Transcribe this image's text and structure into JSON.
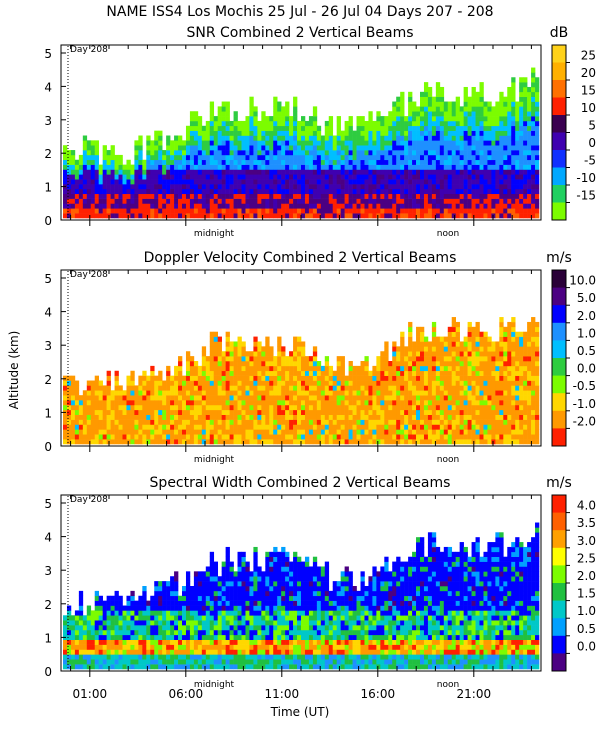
{
  "figure_title": "NAME ISS4 Los Mochis  25 Jul - 26 Jul 04 Days 207 - 208",
  "x_axis": {
    "label": "Time (UT)",
    "tick_labels": [
      "01:00",
      "06:00",
      "11:00",
      "16:00",
      "21:00"
    ],
    "tick_hours": [
      1,
      6,
      11,
      16,
      21
    ],
    "range_hours": [
      -0.5,
      24.5
    ],
    "minor_labels": [
      "midnight",
      "noon"
    ],
    "minor_label_hours": [
      5.2,
      17.2
    ]
  },
  "y_axis_label": "Altitude (km)",
  "day_marker": {
    "label": "Day 208",
    "hour": 0
  },
  "colors": {
    "white": "#ffffff",
    "lime": "#7cfc00",
    "green": "#2ecc40",
    "cyan": "#00bfff",
    "azure": "#1e90ff",
    "blue": "#0000ff",
    "indigo": "#3f00b0",
    "purple": "#4b0082",
    "dark": "#2a0038",
    "red": "#ff2000",
    "orange": "#ff9900",
    "yellow": "#ffd700"
  },
  "chart_data": [
    {
      "type": "heatmap",
      "title": "SNR Combined 2 Vertical Beams",
      "xlabel": "",
      "ylabel": "",
      "ylim": [
        0,
        5
      ],
      "y_ticks": [
        "0",
        "1",
        "2",
        "3",
        "4",
        "5"
      ],
      "colorbar": {
        "unit": "dB",
        "tick_labels": [
          "25",
          "20",
          "15",
          "10",
          "5",
          "0",
          "-5",
          "-10",
          "-15"
        ],
        "colors": [
          "#ffd21a",
          "#ffb000",
          "#ff7000",
          "#ff2000",
          "#3a0050",
          "#3f00b0",
          "#1030ff",
          "#00a8ff",
          "#20d060",
          "#7cfc00"
        ]
      },
      "annotations": [
        "midnight",
        "noon"
      ]
    },
    {
      "type": "heatmap",
      "title": "Doppler Velocity Combined 2 Vertical Beams",
      "xlabel": "",
      "ylabel": "Altitude (km)",
      "ylim": [
        0,
        5
      ],
      "y_ticks": [
        "0",
        "1",
        "2",
        "3",
        "4",
        "5"
      ],
      "colorbar": {
        "unit": "m/s",
        "tick_labels": [
          "10.0",
          "5.0",
          "2.0",
          "1.0",
          "0.5",
          "0.0",
          "-0.5",
          "-1.0",
          "-2.0"
        ],
        "colors": [
          "#2a0038",
          "#4b0082",
          "#0000ff",
          "#1e90ff",
          "#00bfff",
          "#2ecc40",
          "#7cfc00",
          "#ffd700",
          "#ff9900",
          "#ff2000"
        ]
      },
      "annotations": [
        "midnight",
        "noon"
      ]
    },
    {
      "type": "heatmap",
      "title": "Spectral Width Combined 2 Vertical Beams",
      "xlabel": "Time (UT)",
      "ylabel": "",
      "ylim": [
        0,
        5
      ],
      "y_ticks": [
        "0",
        "1",
        "2",
        "3",
        "4",
        "5"
      ],
      "colorbar": {
        "unit": "m/s",
        "tick_labels": [
          "4.0",
          "3.5",
          "3.0",
          "2.5",
          "2.0",
          "1.5",
          "1.0",
          "0.5",
          "0.0"
        ],
        "colors": [
          "#ff2000",
          "#ff6000",
          "#ffa000",
          "#ffff00",
          "#7cfc00",
          "#20c040",
          "#00c8c8",
          "#00a0ff",
          "#0000ff",
          "#4b0082"
        ]
      },
      "annotations": [
        "midnight",
        "noon"
      ]
    }
  ]
}
